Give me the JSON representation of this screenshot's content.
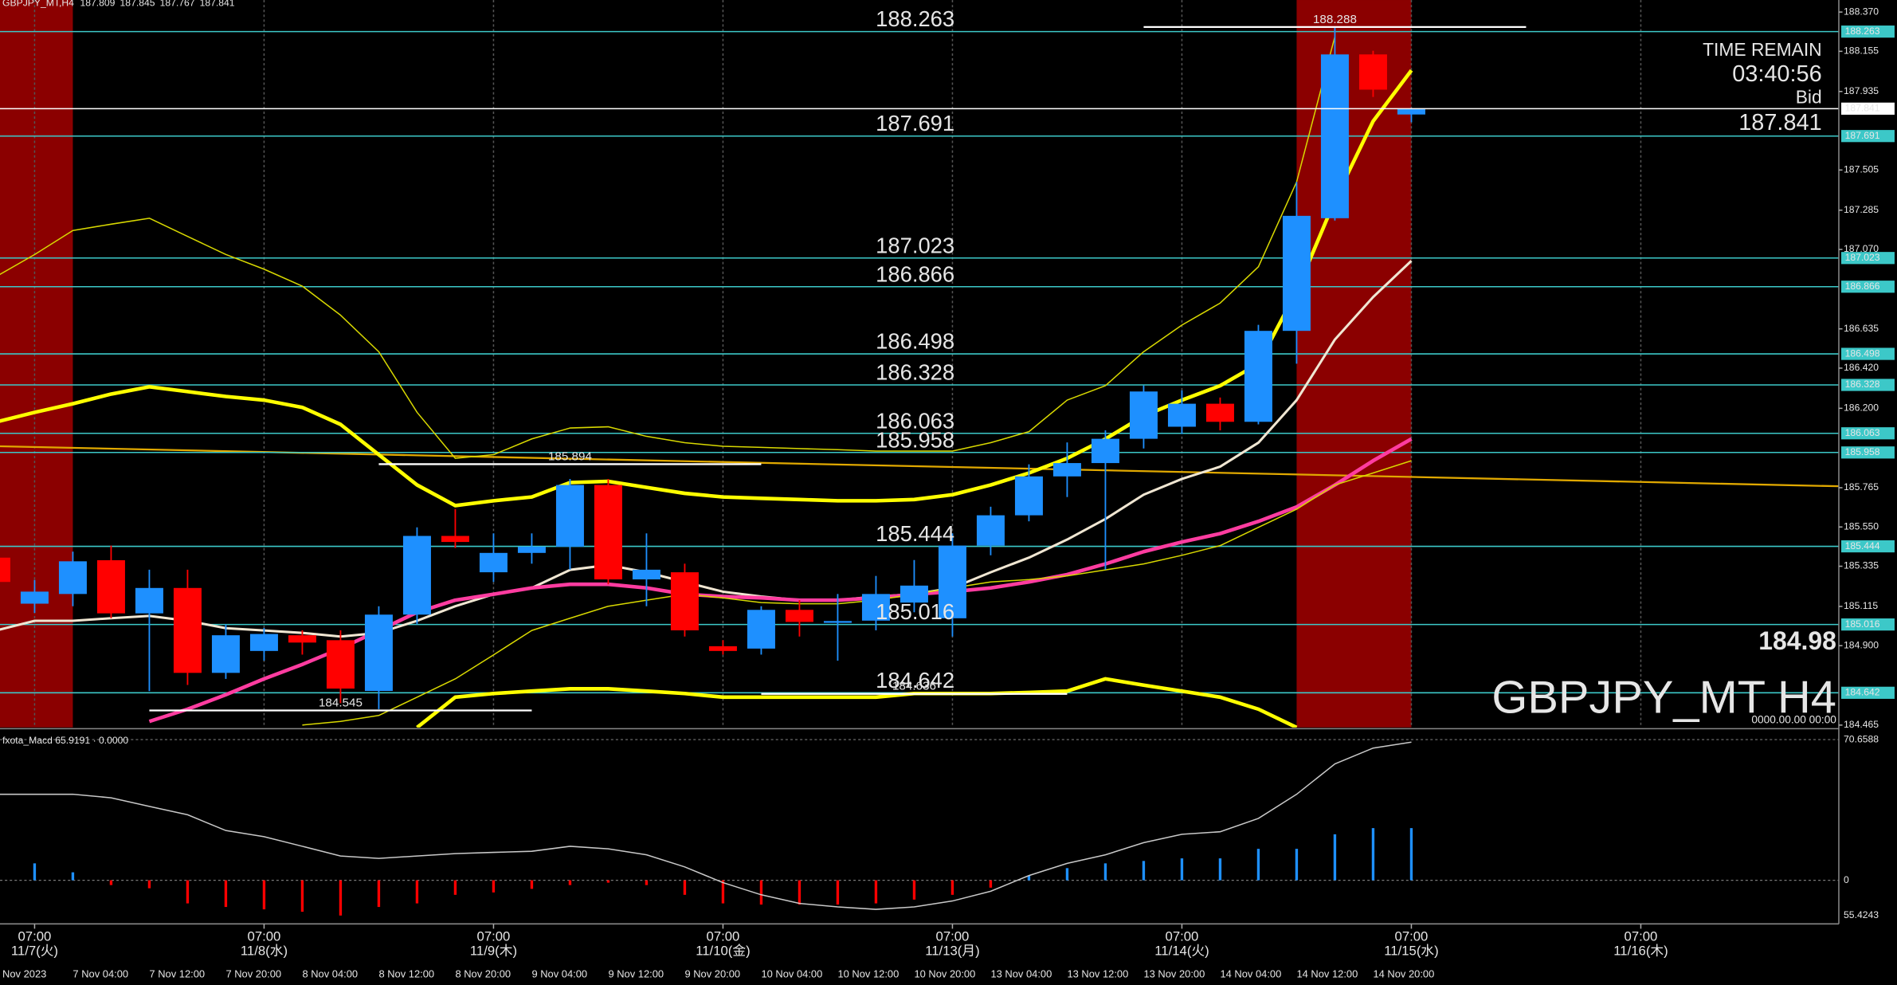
{
  "info": {
    "symbol": "GBPJPY_MT,H4",
    "time_remain_label": "TIME REMAIN",
    "time_remain": "03:40:56",
    "bid_label": "Bid",
    "big_value": 184.98,
    "symbol_label": "GBPJPY_MT H4",
    "timestamp": "0000.00.00 00:00"
  },
  "chart_data": [
    {
      "type": "candlestick",
      "categories": [
        "Nov 2023",
        null,
        "7 Nov 04:00",
        null,
        "7 Nov 12:00",
        null,
        "7 Nov 20:00",
        null,
        "8 Nov 04:00",
        null,
        "8 Nov 12:00",
        null,
        "8 Nov 20:00",
        null,
        "9 Nov 04:00",
        null,
        "9 Nov 12:00",
        null,
        "9 Nov 20:00",
        null,
        "10 Nov 04:00",
        null,
        "10 Nov 12:00",
        null,
        "10 Nov 20:00",
        null,
        "13 Nov 04:00",
        null,
        "13 Nov 12:00",
        null,
        "13 Nov 20:00",
        null,
        "14 Nov 04:00",
        null,
        "14 Nov 12:00",
        null,
        "14 Nov 20:00",
        null
      ],
      "open": [
        185.382,
        185.13,
        185.183,
        185.368,
        185.077,
        185.216,
        184.751,
        184.871,
        184.957,
        184.93,
        184.652,
        185.07,
        185.501,
        185.302,
        185.408,
        185.442,
        185.78,
        185.263,
        185.302,
        184.897,
        184.884,
        185.096,
        185.03,
        185.037,
        185.136,
        185.05,
        185.448,
        185.614,
        185.827,
        185.9,
        186.033,
        186.099,
        186.225,
        186.126,
        186.624,
        187.241,
        188.138,
        187.809
      ],
      "high": [
        185.4,
        185.26,
        185.415,
        185.448,
        185.316,
        185.316,
        185.017,
        184.997,
        184.984,
        184.984,
        185.116,
        185.548,
        185.648,
        185.515,
        185.515,
        185.813,
        185.813,
        185.515,
        185.349,
        184.93,
        185.116,
        185.149,
        185.183,
        185.282,
        185.369,
        185.515,
        185.661,
        185.893,
        186.013,
        186.079,
        186.325,
        186.298,
        186.259,
        186.657,
        187.44,
        188.288,
        188.158,
        187.845
      ],
      "low": [
        185.22,
        185.08,
        185.116,
        185.05,
        184.651,
        184.685,
        184.718,
        184.818,
        184.851,
        184.585,
        184.552,
        185.017,
        185.435,
        185.249,
        185.349,
        185.316,
        185.236,
        185.116,
        184.95,
        184.851,
        184.851,
        184.95,
        184.818,
        184.984,
        185.083,
        184.95,
        185.395,
        185.581,
        185.714,
        185.316,
        185.98,
        186.059,
        186.079,
        186.112,
        186.444,
        187.228,
        187.905,
        187.767
      ],
      "close": [
        185.249,
        185.196,
        185.362,
        185.077,
        185.216,
        184.751,
        184.957,
        184.964,
        184.917,
        184.665,
        185.07,
        185.501,
        185.468,
        185.408,
        185.442,
        185.78,
        185.263,
        185.316,
        184.984,
        184.871,
        185.096,
        185.03,
        185.035,
        185.183,
        185.229,
        185.448,
        185.614,
        185.827,
        185.9,
        186.033,
        186.292,
        186.225,
        186.126,
        186.624,
        187.254,
        188.138,
        187.945,
        187.841
      ],
      "up_color": "#1e90ff",
      "down_color": "#ff0000",
      "ylim": [
        184.452,
        188.436
      ],
      "yticks": [
        {
          "value": 188.37,
          "label": "188.370"
        },
        {
          "value": 188.155,
          "label": "188.155"
        },
        {
          "value": 187.935,
          "label": "187.935"
        },
        {
          "value": 187.505,
          "label": "187.505"
        },
        {
          "value": 187.285,
          "label": "187.285"
        },
        {
          "value": 187.07,
          "label": "187.070"
        },
        {
          "value": 186.635,
          "label": "186.635"
        },
        {
          "value": 186.42,
          "label": "186.420"
        },
        {
          "value": 186.2,
          "label": "186.200"
        },
        {
          "value": 185.765,
          "label": "185.765"
        },
        {
          "value": 185.55,
          "label": "185.550"
        },
        {
          "value": 185.335,
          "label": "185.335"
        },
        {
          "value": 185.115,
          "label": "185.115"
        },
        {
          "value": 184.9,
          "label": "184.900"
        },
        {
          "value": 184.465,
          "label": "184.465"
        }
      ],
      "levels": {
        "color": "#3cc8c8",
        "values": [
          188.263,
          187.691,
          187.023,
          186.866,
          186.498,
          186.328,
          186.063,
          185.958,
          185.444,
          185.016,
          184.642
        ]
      },
      "bid_color": "#ffffff",
      "highlights": [
        [
          0,
          2
        ],
        [
          34,
          37
        ]
      ],
      "highlight_color": "#8b0000",
      "trendline": {
        "color": "#e0a800",
        "values": [
          185.992,
          185.773
        ]
      },
      "price_marks": [
        {
          "value": 188.288,
          "from": 30,
          "to": 40
        },
        {
          "value": 185.894,
          "from": 10,
          "to": 20
        },
        {
          "value": 184.545,
          "from": 4,
          "to": 14
        },
        {
          "value": 184.636,
          "from": 20,
          "to": 28
        }
      ],
      "lines": [
        {
          "color": "#ffff00",
          "width": 3,
          "values": [
            186.125,
            186.178,
            186.225,
            186.278,
            186.318,
            186.291,
            186.265,
            186.245,
            186.205,
            186.112,
            185.946,
            185.78,
            185.667,
            185.694,
            185.714,
            185.793,
            185.8,
            185.767,
            185.734,
            185.714,
            185.707,
            185.7,
            185.694,
            185.694,
            185.7,
            185.727,
            185.78,
            185.846,
            185.926,
            186.032,
            186.158,
            186.245,
            186.324,
            186.444,
            186.842,
            187.34,
            187.772,
            188.051
          ]
        },
        {
          "color": "#f0e6d2",
          "width": 2,
          "values": [
            184.983,
            185.036,
            185.036,
            185.05,
            185.063,
            185.036,
            184.996,
            184.983,
            184.97,
            184.95,
            184.97,
            185.036,
            185.116,
            185.182,
            185.216,
            185.315,
            185.342,
            185.302,
            185.249,
            185.196,
            185.169,
            185.149,
            185.149,
            185.169,
            185.182,
            185.216,
            185.302,
            185.382,
            185.481,
            185.594,
            185.727,
            185.813,
            185.88,
            186.012,
            186.245,
            186.577,
            186.809,
            187.008
          ]
        },
        {
          "color": "#ff3ca0",
          "width": 3,
          "values": [
            null,
            null,
            null,
            null,
            184.485,
            184.552,
            184.631,
            184.718,
            184.797,
            184.884,
            184.983,
            185.083,
            185.149,
            185.182,
            185.216,
            185.236,
            185.236,
            185.216,
            185.182,
            185.169,
            185.162,
            185.149,
            185.149,
            185.162,
            185.182,
            185.196,
            185.216,
            185.249,
            185.289,
            185.348,
            185.415,
            185.468,
            185.514,
            185.581,
            185.66,
            185.78,
            185.913,
            186.032
          ]
        },
        {
          "color": "#d8d800",
          "width": 1,
          "values": [
            186.922,
            187.042,
            187.174,
            187.208,
            187.241,
            187.141,
            187.042,
            186.962,
            186.869,
            186.71,
            186.51,
            186.178,
            185.926,
            185.946,
            186.032,
            186.092,
            186.099,
            186.046,
            186.012,
            185.992,
            185.986,
            185.979,
            185.973,
            185.966,
            185.966,
            185.966,
            186.012,
            186.072,
            186.245,
            186.324,
            186.51,
            186.656,
            186.776,
            186.975,
            187.44,
            188.237,
            null,
            null
          ]
        },
        {
          "color": "#d8d800",
          "width": 1,
          "values": [
            null,
            null,
            null,
            null,
            null,
            null,
            null,
            null,
            184.465,
            184.485,
            184.518,
            184.618,
            184.718,
            184.85,
            184.983,
            185.05,
            185.116,
            185.149,
            185.182,
            185.162,
            185.136,
            185.129,
            185.129,
            185.149,
            185.182,
            185.216,
            185.249,
            185.262,
            185.282,
            185.315,
            185.348,
            185.395,
            185.448,
            185.548,
            185.647,
            185.78,
            185.846,
            185.913
          ]
        },
        {
          "color": "#ffff00",
          "width": 3,
          "values": [
            null,
            null,
            null,
            null,
            null,
            null,
            null,
            null,
            null,
            null,
            null,
            184.452,
            184.618,
            184.638,
            184.651,
            184.664,
            184.664,
            184.651,
            184.638,
            184.618,
            184.618,
            184.618,
            184.618,
            184.618,
            184.638,
            184.638,
            184.638,
            184.644,
            184.651,
            184.718,
            184.684,
            184.651,
            184.618,
            184.552,
            184.452,
            null,
            null,
            null
          ]
        }
      ],
      "jst_ticks": [
        {
          "index": 1,
          "time": "07:00",
          "date": "11/7(火)"
        },
        {
          "index": 7,
          "time": "07:00",
          "date": "11/8(水)"
        },
        {
          "index": 13,
          "time": "07:00",
          "date": "11/9(木)"
        },
        {
          "index": 19,
          "time": "07:00",
          "date": "11/10(金)"
        },
        {
          "index": 25,
          "time": "07:00",
          "date": "11/13(月)"
        },
        {
          "index": 31,
          "time": "07:00",
          "date": "11/14(火)"
        },
        {
          "index": 37,
          "time": "07:00",
          "date": "11/15(水)"
        },
        {
          "index": 43,
          "time": "07:00",
          "date": "11/16(木)"
        }
      ]
    },
    {
      "type": "macd",
      "title": "fxota_Macd 65.9191 · 0.0000",
      "ylim": [
        -21.9,
        73.7
      ],
      "yticks": [
        {
          "value": 70.6588,
          "label": "70.6588"
        },
        0
      ],
      "min_label": "55.4243",
      "up_color": "#1e90ff",
      "down_color": "#ff0000",
      "values": [
        null,
        8.5,
        4,
        -2.4,
        -4,
        -11.6,
        -13.4,
        -14.6,
        -15.8,
        -17.7,
        -13.4,
        -11.6,
        -7.3,
        -6.1,
        -4.3,
        -2.4,
        -1.2,
        -2.4,
        -7.3,
        -11.6,
        -12.2,
        -12.2,
        -12.2,
        -11.6,
        -9.7,
        -7.3,
        -3.7,
        2.4,
        6.1,
        8.5,
        9.7,
        11,
        11,
        15.8,
        15.8,
        23.1,
        26.2,
        26.2
      ],
      "line": {
        "color": "#c8c8c8",
        "values": [
          43.2,
          43.2,
          43.2,
          41.4,
          37.1,
          32.9,
          25,
          21.9,
          17.1,
          12.2,
          11,
          12.2,
          13.4,
          14,
          14.6,
          17.1,
          15.8,
          12.8,
          6.7,
          -1.2,
          -7.3,
          -11.6,
          -13.4,
          -14.6,
          -13.4,
          -10.4,
          -5.5,
          2.4,
          8.5,
          12.8,
          18.9,
          23.1,
          24.4,
          31.1,
          43.2,
          58.5,
          66.4,
          69.4
        ]
      }
    }
  ]
}
